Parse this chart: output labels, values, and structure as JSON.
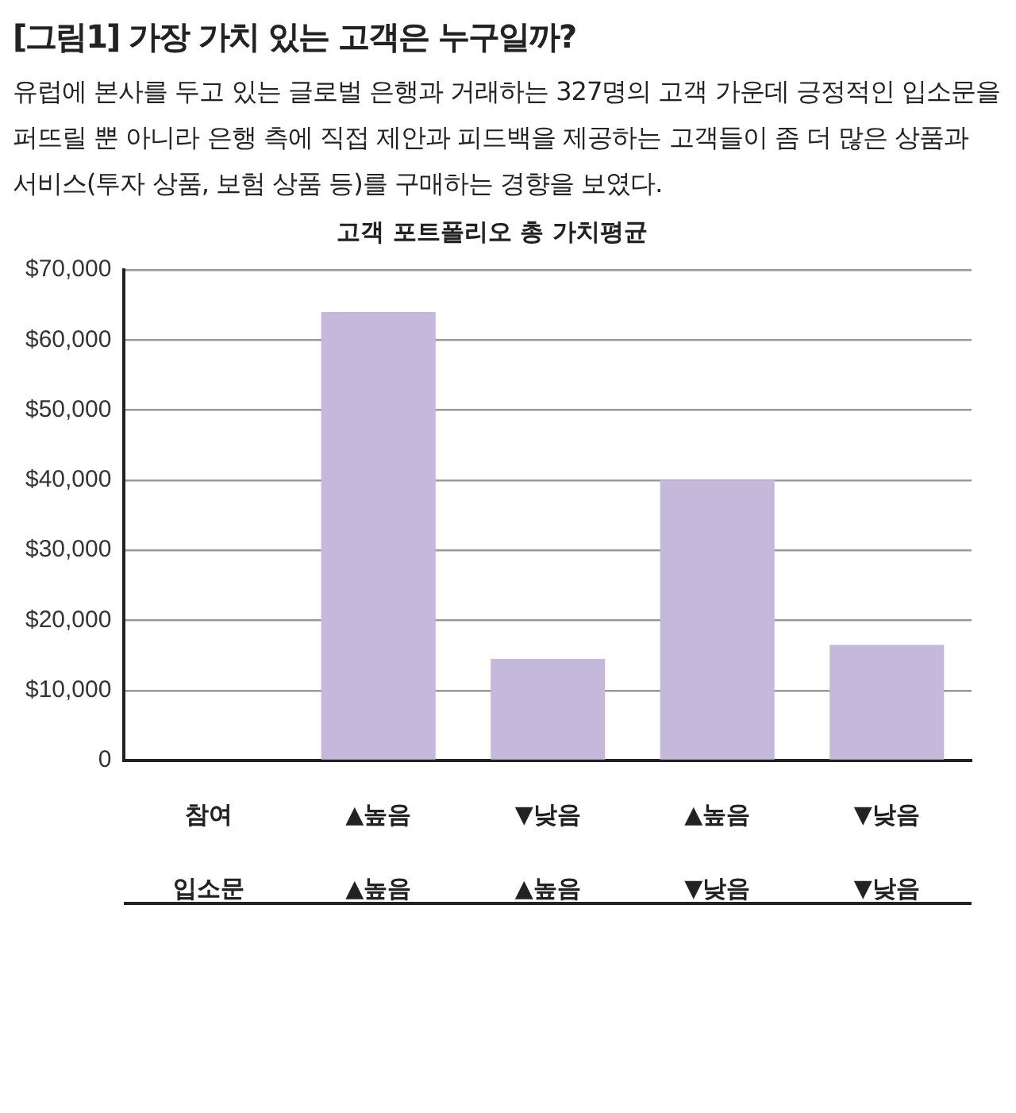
{
  "chart_data": {
    "type": "bar",
    "title": "[그림1] 가장 가치 있는 고객은 누구일까?",
    "subtitle": "유럽에 본사를 두고 있는 글로벌 은행과 거래하는 327명의 고객 가운데 긍정적인 입소문을 퍼뜨릴 뿐 아니라 은행 측에 직접 제안과 피드백을 제공하는 고객들이 좀 더 많은 상품과 서비스(투자 상품, 보험 상품 등)를 구매하는 경향을 보였다.",
    "annotations": [
      "고객 포트폴리오 총 가치평균"
    ],
    "categories": [
      "참여\n입소문",
      "▲높음\n▲높음",
      "▼낮음\n▲높음",
      "▲높음\n▼낮음",
      "▼낮음\n▼낮음"
    ],
    "values": [
      null,
      64000,
      14500,
      40000,
      16500
    ],
    "color": "#c4b9db",
    "ylim": [
      0,
      70000
    ],
    "yticks": [
      0,
      {
        "value": 10000,
        "label": "$10,000"
      },
      {
        "value": 20000,
        "label": "$20,000"
      },
      {
        "value": 30000,
        "label": "$30,000"
      },
      {
        "value": 40000,
        "label": "$40,000"
      },
      {
        "value": 50000,
        "label": "$50,000"
      },
      {
        "value": 60000,
        "label": "$60,000"
      },
      {
        "value": 70000,
        "label": "$70,000"
      }
    ],
    "grid": "y",
    "legend": false
  }
}
